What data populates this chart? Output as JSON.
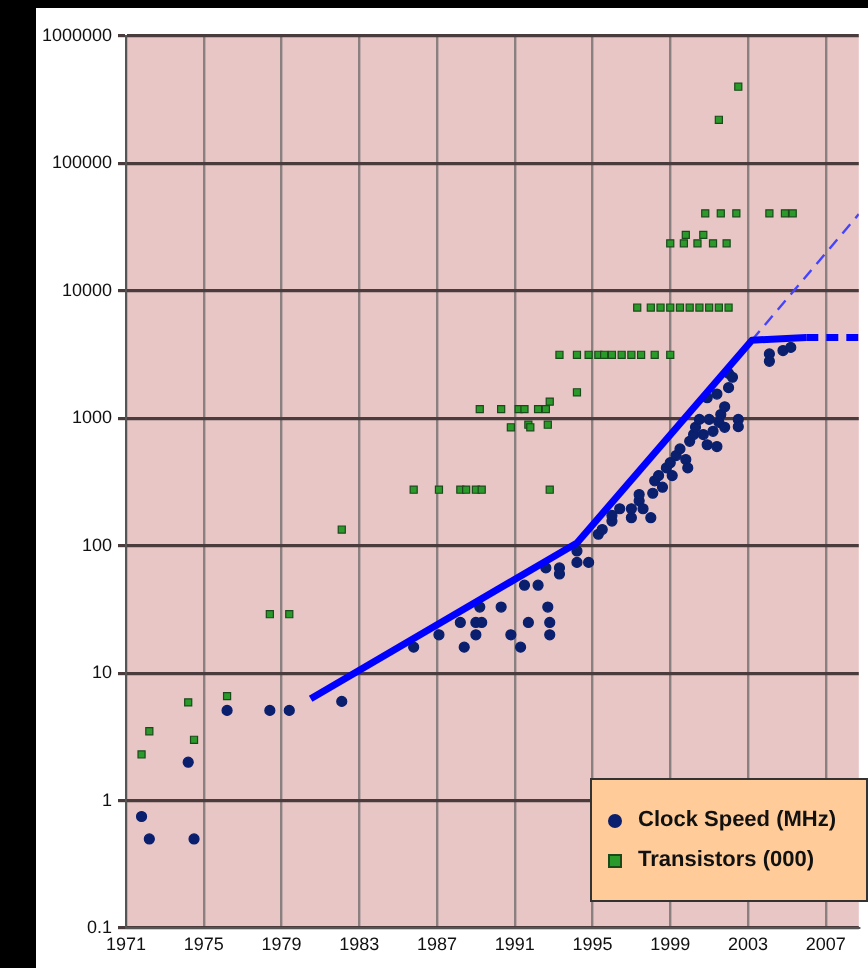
{
  "chart_data": {
    "type": "scatter",
    "log": "y",
    "grid": true,
    "legend": "bottom right",
    "xlim": [
      1971,
      2008.7
    ],
    "xticks": [
      1971,
      1975,
      1979,
      1983,
      1987,
      1991,
      1995,
      1999,
      2003,
      2007
    ],
    "ylim": [
      0.1,
      1000000
    ],
    "yticks": [
      0.1,
      1,
      10,
      100,
      1000,
      10000,
      100000,
      1000000
    ],
    "series": [
      {
        "name": "Clock Speed (MHz)",
        "type": "scatter",
        "marker": "circle",
        "color": "#0a1f6e",
        "x": [
          1971.8,
          1972.2,
          1974.2,
          1974.5,
          1976.2,
          1978.4,
          1979.4,
          1982.1,
          1985.8,
          1987.1,
          1988.2,
          1988.4,
          1989.0,
          1989.0,
          1989.3,
          1989.2,
          1990.3,
          1990.8,
          1991.3,
          1991.5,
          1991.7,
          1992.2,
          1992.7,
          1992.8,
          1992.8,
          1992.6,
          1993.3,
          1993.3,
          1994.2,
          1994.2,
          1994.8,
          1995.3,
          1995.5,
          1996.0,
          1996.0,
          1996.4,
          1997.0,
          1997.0,
          1997.4,
          1997.4,
          1997.6,
          1998.0,
          1998.1,
          1998.2,
          1998.4,
          1998.6,
          1998.8,
          1999.0,
          1999.1,
          1999.3,
          1999.5,
          1999.8,
          1999.9,
          2000.0,
          2000.2,
          2000.3,
          2000.5,
          2000.7,
          2000.9,
          2001.0,
          2001.2,
          2001.4,
          2001.5,
          2001.6,
          2000.9,
          2001.4,
          2001.8,
          2002.0,
          2002.0,
          2002.2,
          2002.5,
          2002.5,
          2001.8,
          2004.1,
          2004.1,
          2004.8,
          2005.2
        ],
        "values": [
          0.75,
          0.5,
          2,
          0.5,
          5.1,
          5.1,
          5.1,
          6,
          16,
          20,
          25,
          16,
          20,
          25,
          25,
          33,
          33,
          20,
          16,
          49,
          25,
          49,
          33,
          25,
          20,
          67,
          67,
          60,
          91,
          74,
          74,
          123,
          134,
          156,
          173,
          195,
          166,
          195,
          225,
          252,
          195,
          166,
          258,
          323,
          355,
          288,
          408,
          448,
          355,
          510,
          575,
          475,
          408,
          660,
          745,
          850,
          980,
          745,
          620,
          980,
          790,
          600,
          930,
          1070,
          1450,
          1550,
          1230,
          1740,
          2250,
          2100,
          980,
          860,
          850,
          3200,
          2800,
          3400,
          3600
        ]
      },
      {
        "name": "Transistors (000)",
        "type": "scatter",
        "marker": "square",
        "color": "#2a9a2a",
        "x": [
          1971.8,
          1972.2,
          1974.2,
          1974.5,
          1976.2,
          1978.4,
          1979.4,
          1982.1,
          1985.8,
          1987.1,
          1988.2,
          1988.5,
          1989.0,
          1989.3,
          1992.8,
          1989.2,
          1990.3,
          1991.2,
          1991.5,
          1990.8,
          1991.7,
          1991.8,
          1992.7,
          1992.2,
          1992.6,
          1992.8,
          1993.3,
          1994.2,
          1994.8,
          1995.3,
          1995.6,
          1996.0,
          1996.5,
          1997.0,
          1997.5,
          1998.2,
          1999.0,
          1994.2,
          1997.3,
          1998.0,
          1998.5,
          1999.0,
          1999.5,
          2000.0,
          2000.5,
          2001.0,
          2001.5,
          2002.0,
          1999.0,
          1999.7,
          2000.4,
          2001.2,
          2001.9,
          1999.8,
          2000.7,
          2000.8,
          2001.6,
          2002.4,
          2004.1,
          2004.9,
          2005.3,
          2001.5,
          2002.5
        ],
        "values": [
          2.3,
          3.5,
          5.9,
          3.0,
          6.6,
          29,
          29,
          134,
          275,
          275,
          275,
          275,
          275,
          275,
          275,
          1180,
          1180,
          1180,
          1180,
          850,
          890,
          850,
          890,
          1180,
          1180,
          1350,
          3150,
          3150,
          3150,
          3150,
          3150,
          3150,
          3150,
          3150,
          3150,
          3150,
          3150,
          1600,
          7400,
          7400,
          7400,
          7400,
          7400,
          7400,
          7400,
          7400,
          7400,
          7400,
          23600,
          23600,
          23600,
          23600,
          23600,
          27500,
          27500,
          40600,
          40600,
          40600,
          40600,
          40600,
          40600,
          220000,
          400000
        ]
      },
      {
        "type": "line",
        "line_style": "solid",
        "marker": "none",
        "color": "#0000ff",
        "x": [
          1980.5,
          1994.2,
          2003.2,
          2006
        ],
        "values": [
          6.3,
          105,
          4100,
          4300
        ]
      },
      {
        "type": "line",
        "line_style": "dashed",
        "marker": "none",
        "color": "#0000ff",
        "x": [
          2006,
          2008.7
        ],
        "values": [
          4300,
          4300
        ]
      },
      {
        "type": "line",
        "line_style": "dashed",
        "marker": "none",
        "color": "#4444ff",
        "x": [
          2003.2,
          2008.7
        ],
        "values": [
          4100,
          40000
        ]
      }
    ]
  }
}
